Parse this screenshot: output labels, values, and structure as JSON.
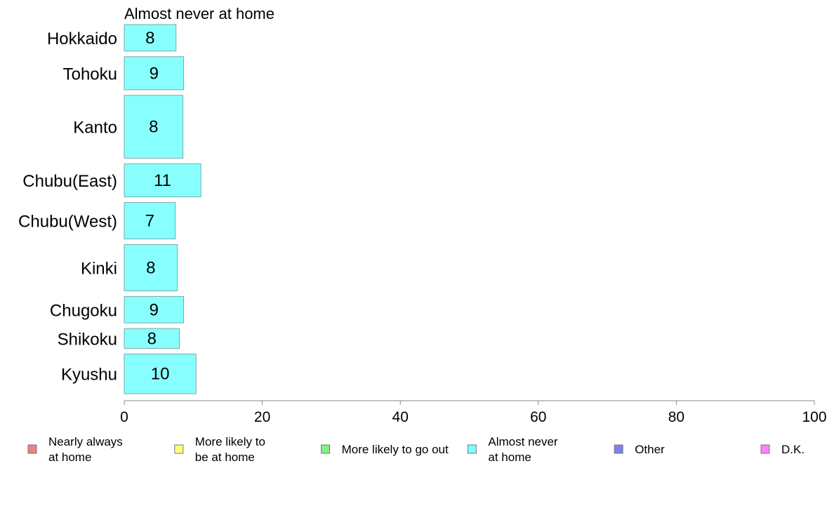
{
  "chart_data": {
    "type": "bar",
    "orientation": "horizontal",
    "title": "Almost never at home",
    "categories": [
      "Hokkaido",
      "Tohoku",
      "Kanto",
      "Chubu(East)",
      "Chubu(West)",
      "Kinki",
      "Chugoku",
      "Shikoku",
      "Kyushu"
    ],
    "series": [
      {
        "name": "Almost never at home",
        "color": "#88ffff",
        "values": [
          7.5,
          8.6,
          8.5,
          11.1,
          7.4,
          7.7,
          8.6,
          8.0,
          10.4
        ],
        "labels": [
          "8",
          "9",
          "8",
          "11",
          "7",
          "8",
          "9",
          "8",
          "10"
        ]
      }
    ],
    "bar_thickness_weights": [
      0.8,
      1.0,
      1.9,
      1.0,
      1.1,
      1.4,
      0.8,
      0.6,
      1.2
    ],
    "xlim": [
      0,
      100
    ],
    "xticks": [
      0,
      20,
      40,
      60,
      80,
      100
    ],
    "xtick_labels": [
      "0",
      "20",
      "40",
      "60",
      "80",
      "100"
    ],
    "grid": false,
    "legend_position": "bottom",
    "legend": [
      {
        "lines": [
          "Nearly always",
          "at home"
        ],
        "color": "#f08080"
      },
      {
        "lines": [
          "More likely to",
          "be at home"
        ],
        "color": "#ffff80"
      },
      {
        "lines": [
          "More likely to go out"
        ],
        "color": "#80f080"
      },
      {
        "lines": [
          "Almost never",
          "at home"
        ],
        "color": "#80ffff"
      },
      {
        "lines": [
          "Other"
        ],
        "color": "#8080f0"
      },
      {
        "lines": [
          "D.K."
        ],
        "color": "#ff80ff"
      }
    ]
  }
}
